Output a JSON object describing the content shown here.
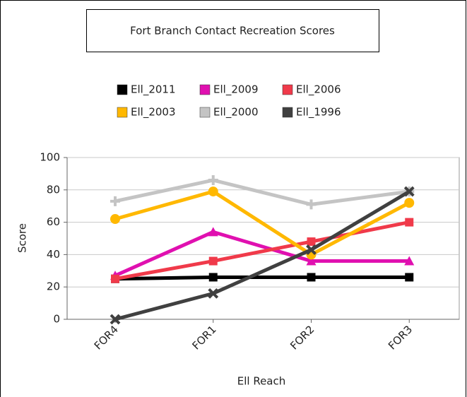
{
  "chart_data": {
    "type": "line",
    "title": "Fort Branch Contact Recreation Scores",
    "x_label": "Ell Reach",
    "y_label": "Score",
    "categories": [
      "FOR4",
      "FOR1",
      "FOR2",
      "FOR3"
    ],
    "series": [
      {
        "name": "Ell_2011",
        "color": "#000000",
        "marker": "square",
        "values": [
          25,
          26,
          26,
          26
        ]
      },
      {
        "name": "Ell_2009",
        "color": "#e010b0",
        "marker": "triangle",
        "values": [
          27,
          54,
          36,
          36
        ]
      },
      {
        "name": "Ell_2006",
        "color": "#f03a4a",
        "marker": "square",
        "values": [
          25,
          36,
          48,
          60
        ]
      },
      {
        "name": "Ell_2003",
        "color": "#ffb800",
        "marker": "circle",
        "values": [
          62,
          79,
          40,
          72
        ]
      },
      {
        "name": "Ell_2000",
        "color": "#c4c4c4",
        "marker": "plus",
        "values": [
          73,
          86,
          71,
          79
        ]
      },
      {
        "name": "Ell_1996",
        "color": "#404040",
        "marker": "x",
        "values": [
          0,
          16,
          43,
          79
        ]
      }
    ],
    "ylim": [
      0,
      100
    ],
    "yticks": [
      0,
      20,
      40,
      60,
      80,
      100
    ],
    "grid": true
  }
}
